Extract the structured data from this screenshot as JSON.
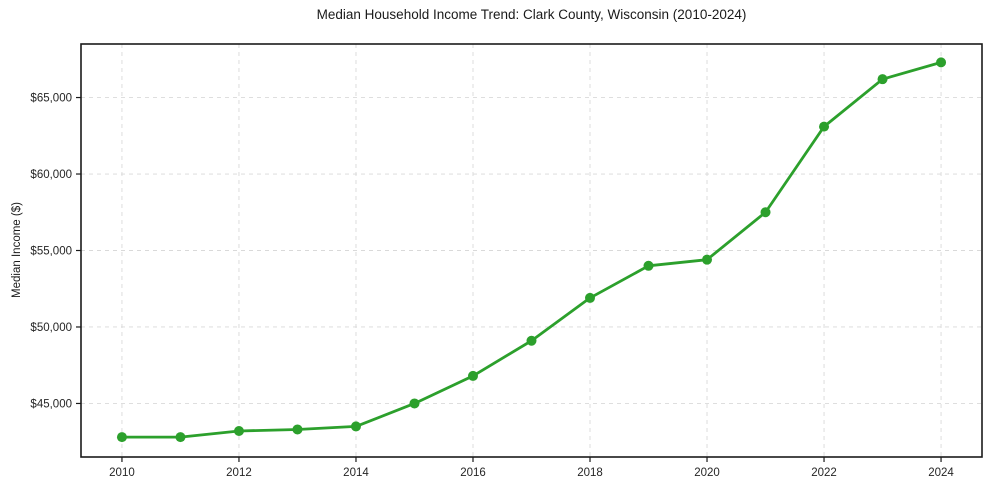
{
  "chart_data": {
    "type": "line",
    "title": "Median Household Income Trend: Clark County, Wisconsin (2010-2024)",
    "ylabel": "Median Income ($)",
    "xlabel": "",
    "series_name": "Median Household Income",
    "x": [
      2010,
      2011,
      2012,
      2013,
      2014,
      2015,
      2016,
      2017,
      2018,
      2019,
      2020,
      2021,
      2022,
      2023,
      2024
    ],
    "values": [
      42800,
      42800,
      43200,
      43300,
      43500,
      45000,
      46800,
      49100,
      51900,
      54000,
      54400,
      57500,
      63100,
      66200,
      67300
    ],
    "xlim": [
      2009.3,
      2024.7
    ],
    "ylim": [
      41500,
      68500
    ],
    "x_ticks": [
      2010,
      2012,
      2014,
      2016,
      2018,
      2020,
      2022,
      2024
    ],
    "x_tick_labels": [
      "2010",
      "2012",
      "2014",
      "2016",
      "2018",
      "2020",
      "2022",
      "2024"
    ],
    "y_ticks": [
      45000,
      50000,
      55000,
      60000,
      65000
    ],
    "y_tick_labels": [
      "$45,000",
      "$50,000",
      "$55,000",
      "$60,000",
      "$65,000"
    ],
    "grid": true,
    "grid_style": "dashed",
    "legend": "none",
    "line_color": "#2ca02c",
    "marker": "circle",
    "grid_color": "#d9d9d9",
    "axis_color": "#1a1a1a",
    "tick_label_color": "#262626"
  }
}
